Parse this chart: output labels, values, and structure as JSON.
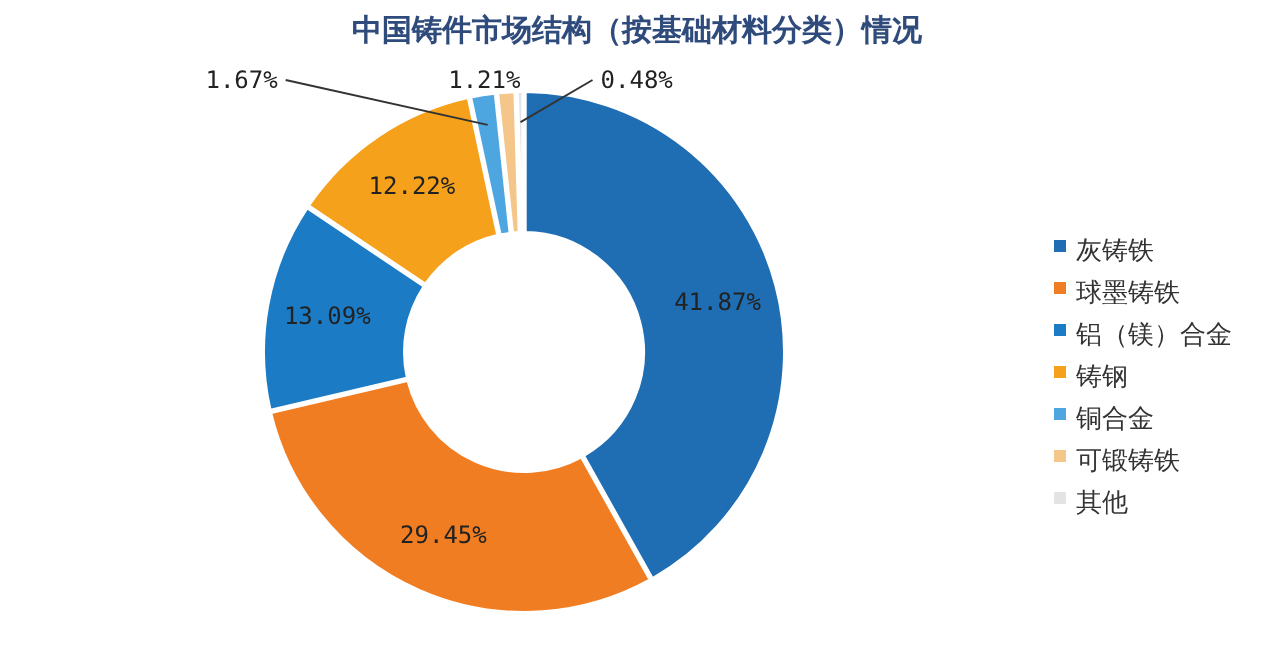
{
  "chart_data": {
    "type": "donut",
    "title": "中国铸件市场结构（按基础材料分类）情况",
    "categories": [
      "灰铸铁",
      "球墨铸铁",
      "铝（镁）合金",
      "铸钢",
      "铜合金",
      "可锻铸铁",
      "其他"
    ],
    "values": [
      41.87,
      29.45,
      13.09,
      12.22,
      1.67,
      1.21,
      0.48
    ],
    "colors": [
      "#1f6db3",
      "#f07d22",
      "#1b7bc4",
      "#f5a11c",
      "#4ea6e0",
      "#f4c68a",
      "#e3e3e3"
    ],
    "value_labels": [
      "41.87%",
      "29.45%",
      "13.09%",
      "12.22%",
      "1.67%",
      "1.21%",
      "0.48%"
    ],
    "legend": "right"
  }
}
